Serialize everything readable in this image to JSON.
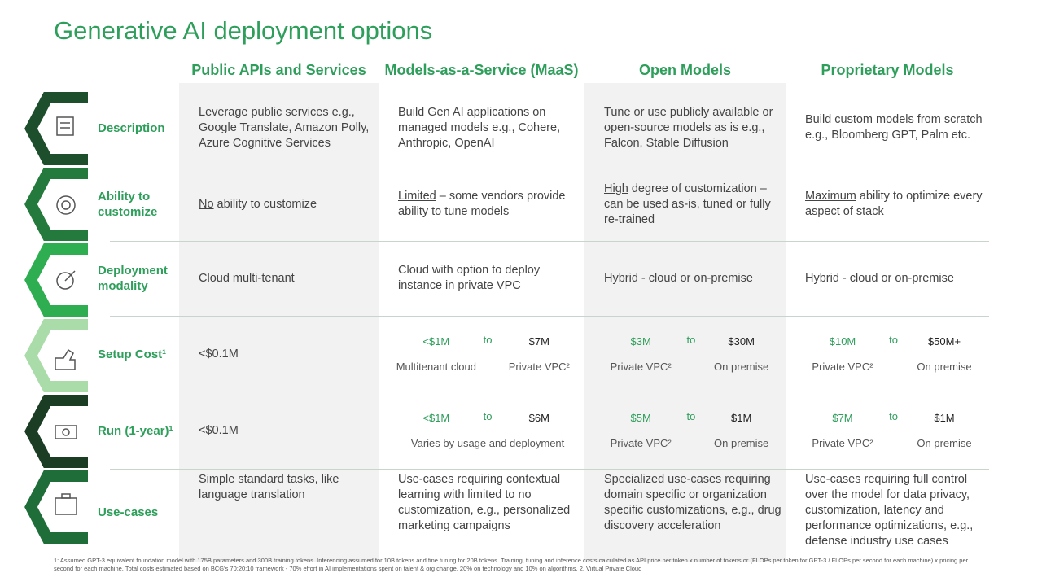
{
  "title": "Generative AI deployment options",
  "columns": [
    "Public APIs and Services",
    "Models-as-a-Service (MaaS)",
    "Open Models",
    "Proprietary Models"
  ],
  "rows": [
    {
      "label": "Description",
      "cells": [
        {
          "text": "Leverage public services e.g., Google Translate, Amazon Polly, Azure Cognitive Services"
        },
        {
          "text": "Build Gen AI applications on managed models e.g., Cohere, Anthropic, OpenAI"
        },
        {
          "text": "Tune or use publicly available or open-source models as is e.g., Falcon, Stable Diffusion"
        },
        {
          "text": "Build custom models from scratch e.g., Bloomberg GPT, Palm etc."
        }
      ]
    },
    {
      "label": "Ability to customize",
      "cells": [
        {
          "emph": "No",
          "text": "ability to customize"
        },
        {
          "emph": "Limited",
          "text": "– some vendors provide ability to tune models"
        },
        {
          "emph": "High",
          "text": "degree of customization – can be used as-is, tuned or fully re-trained"
        },
        {
          "emph": "Maximum",
          "text": "ability to optimize every aspect of stack"
        }
      ]
    },
    {
      "label": "Deployment modality",
      "cells": [
        {
          "text": "Cloud multi-tenant"
        },
        {
          "text": "Cloud with option to deploy instance in private VPC"
        },
        {
          "text": "Hybrid - cloud or on-premise"
        },
        {
          "text": "Hybrid - cloud or on-premise"
        }
      ]
    },
    {
      "label": "Setup Cost¹",
      "cells": [
        {
          "text": "<$0.1M"
        },
        {
          "low": "<$1M",
          "to": "to",
          "high": "$7M",
          "low_label": "Multitenant cloud",
          "high_label": "Private VPC²"
        },
        {
          "low": "$3M",
          "to": "to",
          "high": "$30M",
          "low_label": "Private VPC²",
          "high_label": "On premise"
        },
        {
          "low": "$10M",
          "to": "to",
          "high": "$50M+",
          "low_label": "Private VPC²",
          "high_label": "On premise"
        }
      ]
    },
    {
      "label": "Run (1-year)¹",
      "cells": [
        {
          "text": "<$0.1M"
        },
        {
          "low": "<$1M",
          "to": "to",
          "high": "$6M",
          "label": "Varies by usage and deployment"
        },
        {
          "low": "$5M",
          "to": "to",
          "high": "$1M",
          "low_label": "Private VPC²",
          "high_label": "On premise"
        },
        {
          "low": "$7M",
          "to": "to",
          "high": "$1M",
          "low_label": "Private VPC²",
          "high_label": "On premise"
        }
      ]
    },
    {
      "label": "Use-cases",
      "cells": [
        {
          "text": "Simple standard tasks, like language translation"
        },
        {
          "text": "Use-cases requiring contextual learning with limited to no customization, e.g., personalized marketing campaigns"
        },
        {
          "text": "Specialized use-cases requiring domain specific or organization specific customizations, e.g., drug discovery acceleration"
        },
        {
          "text": "Use-cases requiring full control over the model for data privacy, customization, latency and performance optimizations, e.g., defense industry use cases"
        }
      ]
    }
  ],
  "footnote": "1: Assumed GPT-3 equivalent foundation model with 175B parameters and 300B training tokens. Inferencing assumed for 10B tokens and fine tuning for 20B tokens. Training, tuning and inference costs calculated as API price per token x number of tokens or (FLOPs per token for GPT-3 / FLOPs per second for each machine) x pricing per second for each machine. Total costs estimated based on BCG's 70:20:10 framework - 70% effort in AI implementations spent on talent & org change, 20% on technology and 10% on algorithms. 2. Virtual Private Cloud"
}
